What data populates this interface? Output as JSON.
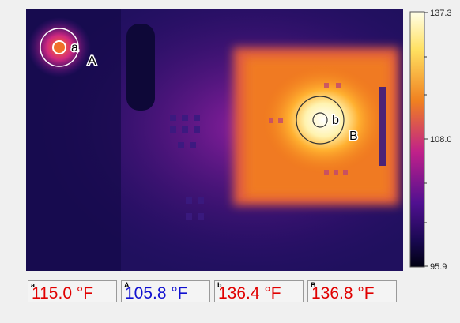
{
  "scale": {
    "labels": [
      "137.3",
      "108.0",
      "95.9"
    ]
  },
  "markers": [
    {
      "label": "a"
    },
    {
      "label": "A"
    },
    {
      "label": "b"
    },
    {
      "label": "B"
    }
  ],
  "readouts": [
    {
      "label": "a",
      "value": "115.0 °F",
      "color": "#e00000"
    },
    {
      "label": "A",
      "value": "105.8 °F",
      "color": "#1010d0"
    },
    {
      "label": "b",
      "value": "136.4 °F",
      "color": "#e00000"
    },
    {
      "label": "B",
      "value": "136.8 °F",
      "color": "#e00000"
    }
  ]
}
